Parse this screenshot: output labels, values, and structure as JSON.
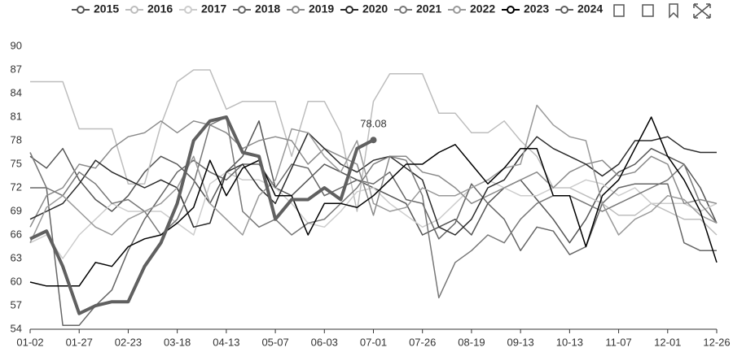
{
  "chart_data": {
    "type": "line",
    "categories": [
      "01-02",
      null,
      null,
      "01-27",
      null,
      null,
      "02-23",
      null,
      null,
      "03-18",
      null,
      null,
      "04-13",
      null,
      null,
      "05-07",
      null,
      null,
      "06-03",
      null,
      null,
      "07-01",
      null,
      null,
      "07-26",
      null,
      null,
      "08-19",
      null,
      null,
      "09-13",
      null,
      null,
      "10-13",
      null,
      null,
      "11-07",
      null,
      null,
      "12-01",
      null,
      null,
      "12-26"
    ],
    "ylim": [
      54,
      90
    ],
    "yticks": [
      54,
      57,
      60,
      63,
      66,
      69,
      72,
      75,
      78,
      81,
      84,
      87,
      90
    ],
    "grid": false,
    "series": [
      {
        "name": "2015",
        "color": "#555555",
        "values": [
          76,
          74.5,
          77,
          73,
          70.5,
          69,
          71,
          74,
          76,
          75,
          73,
          70,
          74,
          76,
          80.5,
          72,
          71,
          73,
          75,
          74,
          73,
          72,
          71,
          70,
          66,
          67,
          68,
          66,
          70,
          72,
          73,
          70.5,
          68,
          65,
          68,
          72,
          74,
          75,
          77,
          76,
          75,
          72,
          67.5
        ]
      },
      {
        "name": "2016",
        "color": "#bdbdbd",
        "values": [
          85.5,
          85.5,
          85.5,
          79.5,
          79.5,
          79.5,
          72.5,
          72.5,
          80,
          85.5,
          87,
          87,
          82,
          83,
          83,
          83,
          76,
          83,
          83,
          79,
          69,
          83,
          86.5,
          86.5,
          86.5,
          81.5,
          81.5,
          79,
          79,
          80.5,
          78,
          76,
          72,
          72,
          71,
          70,
          68.5,
          68.5,
          70,
          69,
          68,
          68,
          66
        ]
      },
      {
        "name": "2017",
        "color": "#cccccc",
        "values": [
          65,
          66,
          63,
          66,
          68,
          70,
          69,
          69,
          69,
          67.5,
          66,
          72.5,
          74,
          73,
          73,
          72,
          70,
          67.5,
          67,
          69,
          71.5,
          72,
          70,
          68.5,
          67,
          68,
          70,
          72,
          73,
          72,
          71,
          71,
          72,
          72,
          73,
          72.5,
          71,
          72,
          70,
          70,
          70,
          69,
          70
        ]
      },
      {
        "name": "2018",
        "color": "#666666",
        "values": [
          72,
          72,
          54.5,
          54.5,
          57,
          59,
          64,
          68,
          71,
          74,
          75.5,
          74,
          73,
          75,
          75,
          72,
          75,
          74.5,
          71,
          72,
          73,
          72.5,
          74,
          70.5,
          70,
          65.5,
          67.5,
          72.5,
          70,
          68,
          64,
          67,
          66.5,
          63.5,
          64.5,
          70,
          72,
          72.5,
          72.5,
          72.5,
          65,
          64,
          64
        ]
      },
      {
        "name": "2019",
        "color": "#8a8a8a",
        "values": [
          67,
          71,
          72,
          75,
          74.5,
          77,
          78.5,
          79,
          80.5,
          79,
          80.5,
          80,
          79,
          77,
          78,
          78.5,
          78,
          75,
          77,
          76,
          75,
          68.5,
          76,
          76,
          74,
          73.5,
          72,
          70,
          71,
          72,
          73,
          74,
          72,
          74,
          75,
          75.5,
          73.5,
          74,
          76,
          75,
          70,
          70.5,
          70
        ]
      },
      {
        "name": "2020",
        "color": "#2a2a2a",
        "values": [
          68,
          69,
          70,
          72.5,
          75.5,
          74,
          73,
          72,
          73,
          72,
          67,
          67.5,
          74,
          75,
          72,
          70,
          74.5,
          79,
          77,
          75,
          74,
          75.5,
          76,
          74.5,
          73,
          67,
          66,
          68,
          72,
          73,
          76,
          78.5,
          77,
          76,
          75,
          73.5,
          75,
          78,
          78,
          78.5,
          77,
          76.5,
          76.5
        ]
      },
      {
        "name": "2021",
        "color": "#777777",
        "values": [
          76.5,
          72,
          71,
          74,
          72.5,
          70,
          70.5,
          69,
          66,
          68,
          72.5,
          80,
          81,
          69,
          67,
          68,
          66,
          67.5,
          68,
          70,
          72,
          75,
          76,
          75.5,
          71,
          58,
          62.5,
          64,
          66,
          65,
          68,
          70,
          71,
          71,
          70,
          69,
          70,
          71,
          72,
          73,
          75,
          70,
          67.5
        ]
      },
      {
        "name": "2022",
        "color": "#999999",
        "values": [
          65,
          69.5,
          71,
          69,
          67,
          66,
          68,
          69,
          70,
          72,
          76,
          70,
          68,
          66,
          71,
          73,
          79.5,
          79,
          76,
          74,
          78,
          70,
          69,
          69.5,
          72,
          71,
          71,
          72,
          73,
          74.5,
          75,
          82.5,
          80,
          78.5,
          78,
          70,
          66,
          68,
          69,
          71,
          70.5,
          68.5,
          67.5
        ]
      },
      {
        "name": "2023",
        "color": "#000000",
        "values": [
          60,
          59.5,
          59.5,
          59.5,
          62.5,
          62,
          64.5,
          65.5,
          66,
          67.5,
          69.5,
          75.5,
          71,
          74.5,
          75.5,
          71,
          71,
          66,
          70,
          70,
          69.5,
          71,
          73,
          75,
          75,
          76.5,
          77.5,
          75,
          72.5,
          74.5,
          77,
          77,
          71,
          71,
          64.5,
          71,
          73,
          77,
          81,
          76,
          73,
          69,
          62.5
        ]
      },
      {
        "name": "2024",
        "color": "#606060",
        "width": 4,
        "labeled_last": true,
        "values": [
          65.5,
          66.5,
          62,
          56,
          57,
          57.5,
          57.5,
          62,
          65,
          70,
          78,
          80.5,
          81,
          76.5,
          76,
          68,
          70.5,
          70.5,
          72,
          70.5,
          77,
          78.08,
          null,
          null,
          null,
          null,
          null,
          null,
          null,
          null,
          null,
          null,
          null,
          null,
          null,
          null,
          null,
          null,
          null,
          null,
          null,
          null,
          null
        ]
      }
    ]
  }
}
